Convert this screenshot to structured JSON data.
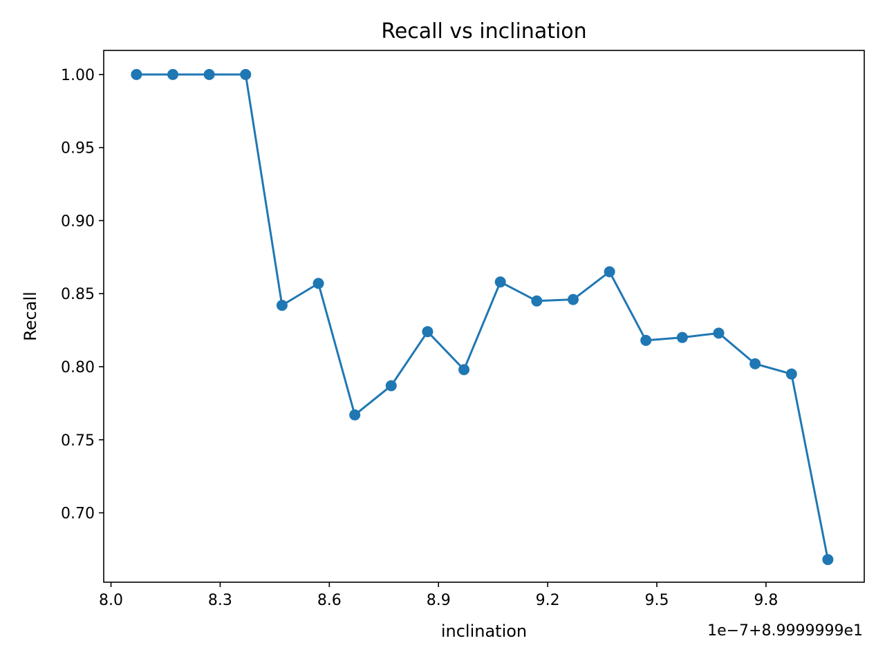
{
  "chart_data": {
    "type": "line",
    "title": "Recall vs inclination",
    "xlabel": "inclination",
    "ylabel": "Recall",
    "x_offset_label": "1e−7+8.9999999e1",
    "xlim": [
      7.98,
      10.07
    ],
    "ylim": [
      0.6525,
      1.0165
    ],
    "x_ticks": [
      8.0,
      8.3,
      8.6,
      8.9,
      9.2,
      9.5,
      9.8
    ],
    "x_tick_labels": [
      "8.0",
      "8.3",
      "8.6",
      "8.9",
      "9.2",
      "9.5",
      "9.8"
    ],
    "y_ticks": [
      0.7,
      0.75,
      0.8,
      0.85,
      0.9,
      0.95,
      1.0
    ],
    "y_tick_labels": [
      "0.70",
      "0.75",
      "0.80",
      "0.85",
      "0.90",
      "0.95",
      "1.00"
    ],
    "grid": false,
    "colors": {
      "series": "#1f77b4",
      "axes": "#000000",
      "background": "#ffffff"
    },
    "series": [
      {
        "marker": "circle",
        "x": [
          8.07,
          8.17,
          8.27,
          8.37,
          8.47,
          8.57,
          8.67,
          8.77,
          8.87,
          8.97,
          9.07,
          9.17,
          9.27,
          9.37,
          9.47,
          9.57,
          9.67,
          9.77,
          9.87,
          9.97
        ],
        "y": [
          1.0,
          1.0,
          1.0,
          1.0,
          0.842,
          0.857,
          0.767,
          0.787,
          0.824,
          0.798,
          0.858,
          0.845,
          0.846,
          0.865,
          0.818,
          0.82,
          0.823,
          0.802,
          0.795,
          0.668
        ]
      }
    ]
  }
}
